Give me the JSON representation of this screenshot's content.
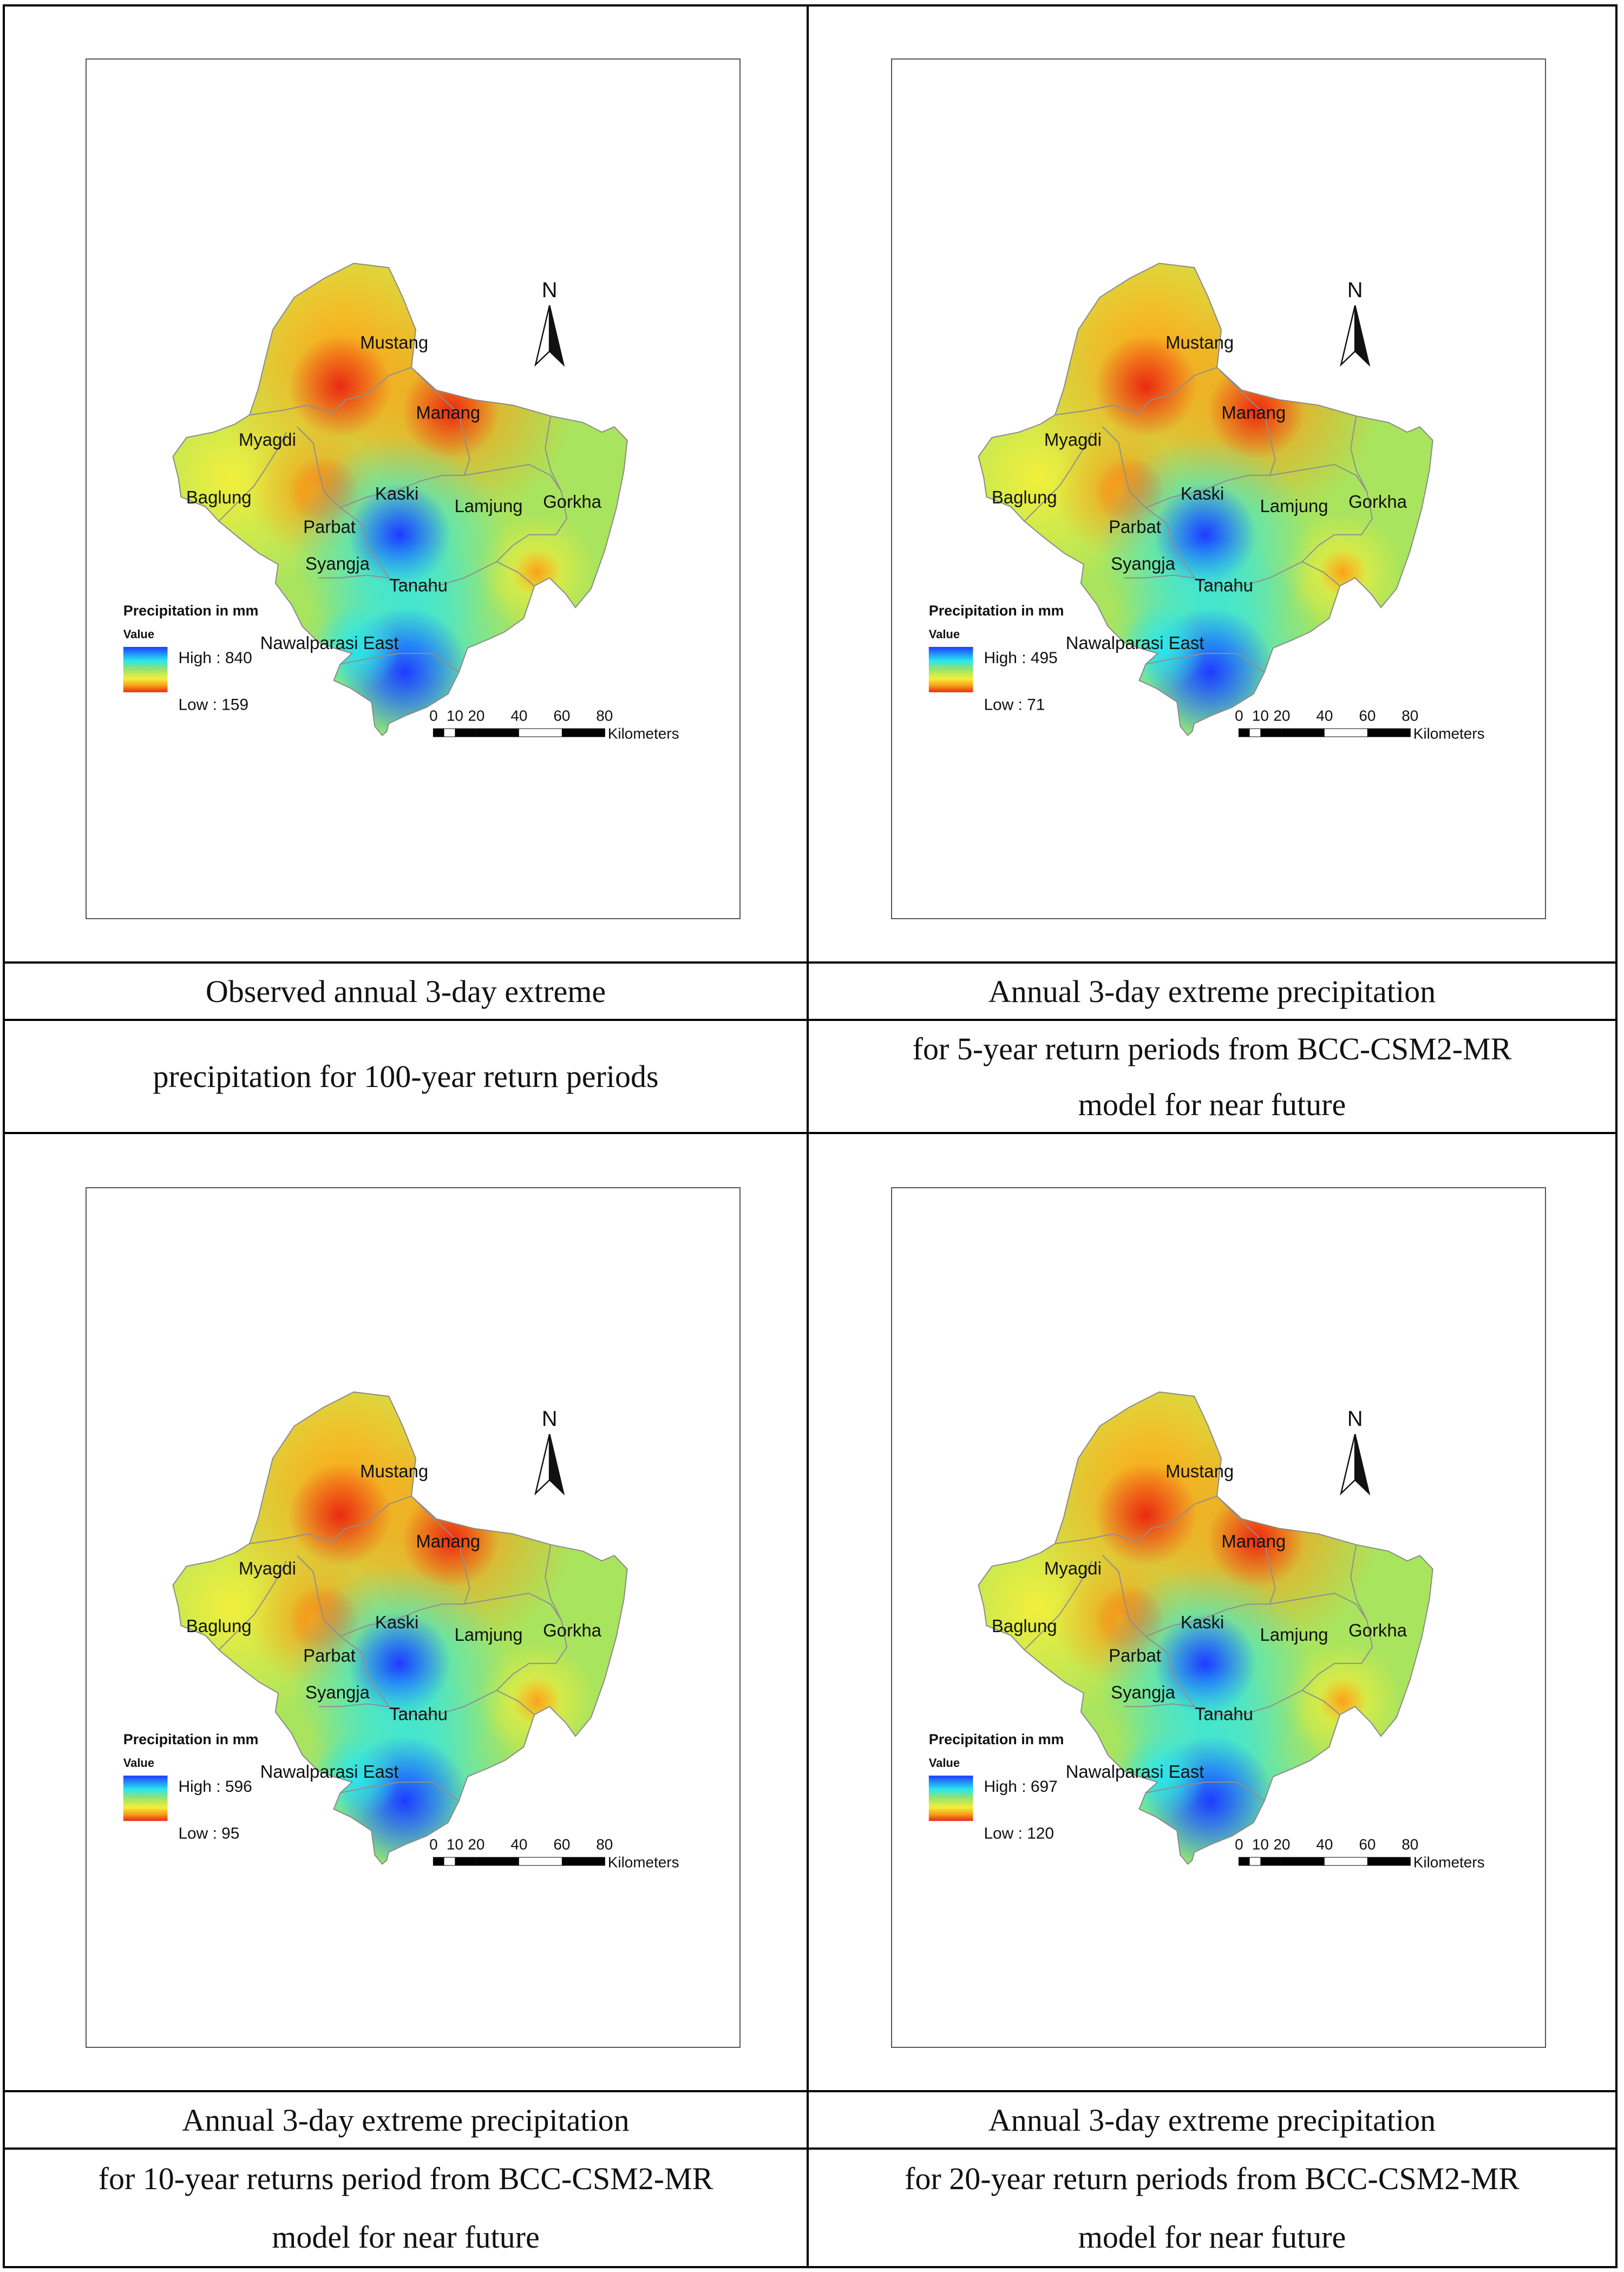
{
  "common": {
    "north_label": "N",
    "legend_title": "Precipitation in mm",
    "legend_subtitle": "Value",
    "high_prefix": "High : ",
    "low_prefix": "Low : ",
    "scale_ticks": [
      "0",
      "10",
      "20",
      "40",
      "60",
      "80"
    ],
    "scale_unit": "Kilometers",
    "districts": [
      "Mustang",
      "Manang",
      "Myagdi",
      "Baglung",
      "Kaski",
      "Lamjung",
      "Gorkha",
      "Parbat",
      "Syangja",
      "Tanahu",
      "Nawalparasi East"
    ]
  },
  "panels": [
    {
      "id": "observed-100yr",
      "high": "840",
      "low": "159",
      "caption_line1": "Observed annual 3-day extreme",
      "caption_line2": "precipitation for 100-year return periods"
    },
    {
      "id": "bcc-5yr",
      "high": "495",
      "low": "71",
      "caption_line1": "Annual 3-day extreme precipitation",
      "caption_line2": "for 5-year return periods from BCC-CSM2-MR",
      "caption_line3": "model for near future"
    },
    {
      "id": "bcc-10yr",
      "high": "596",
      "low": "95",
      "caption_line1": "Annual 3-day extreme precipitation",
      "caption_line2": "for 10-year returns period from BCC-CSM2-MR",
      "caption_line3": "model for near future"
    },
    {
      "id": "bcc-20yr",
      "high": "697",
      "low": "120",
      "caption_line1": "Annual 3-day extreme precipitation",
      "caption_line2": "for 20-year return periods from BCC-CSM2-MR",
      "caption_line3": "model for near future"
    }
  ],
  "colors": {
    "high": "#1f3cff",
    "mid_cyan": "#28e6ee",
    "mid_green": "#9be36a",
    "mid_yellow": "#f2ef3c",
    "orange": "#f7a21a",
    "low": "#ea2a12",
    "base": "#a9e45e"
  }
}
